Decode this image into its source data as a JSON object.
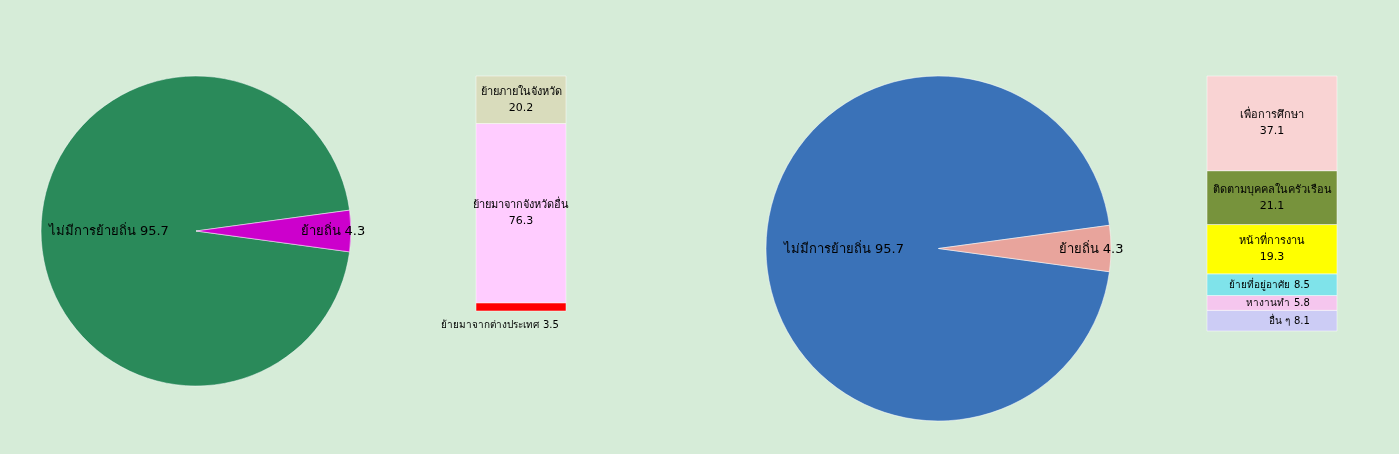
{
  "chart_data": [
    {
      "type": "pie",
      "categories": [
        "ไม่มีการย้ายถิ่น",
        "ย้ายถิ่น"
      ],
      "values": [
        95.7,
        4.3
      ],
      "colors": [
        "#2a8a5a",
        "#cc00cc"
      ],
      "data_labels": true
    },
    {
      "type": "bar",
      "stacked": true,
      "categories": [
        null
      ],
      "data_labels": true,
      "series": [
        {
          "name": "ย้ายมาจากต่างประเทศ",
          "color": "#ff0000",
          "values": [
            3.5
          ]
        },
        {
          "name": "ย้ายมาจากจังหวัดอื่น",
          "color": "#ffccff",
          "values": [
            76.3
          ]
        },
        {
          "name": "ย้ายภายในจังหวัด",
          "color": "#d9dcbc",
          "values": [
            20.2
          ]
        }
      ]
    },
    {
      "type": "pie",
      "categories": [
        "ไม่มีการย้ายถิ่น",
        "ย้ายถิ่น"
      ],
      "values": [
        95.7,
        4.3
      ],
      "colors": [
        "#3a72b8",
        "#e8a49c"
      ],
      "data_labels": true
    },
    {
      "type": "bar",
      "stacked": true,
      "categories": [
        null
      ],
      "data_labels": true,
      "series": [
        {
          "name": "อื่น ๆ",
          "color": "#ccccf5",
          "values": [
            8.1
          ]
        },
        {
          "name": "หางานทำ",
          "color": "#f5c6ee",
          "values": [
            5.8
          ]
        },
        {
          "name": "ย้ายที่อยู่อาศัย",
          "color": "#7fe3ea",
          "values": [
            8.5
          ]
        },
        {
          "name": "หน้าที่การงาน",
          "color": "#ffff00",
          "values": [
            19.3
          ]
        },
        {
          "name": "ติดตามบุคคลในครัวเรือน",
          "color": "#77933c",
          "values": [
            21.1
          ]
        },
        {
          "name": "เพื่อการศึกษา",
          "color": "#f9d3d3",
          "values": [
            37.1
          ]
        }
      ]
    }
  ]
}
